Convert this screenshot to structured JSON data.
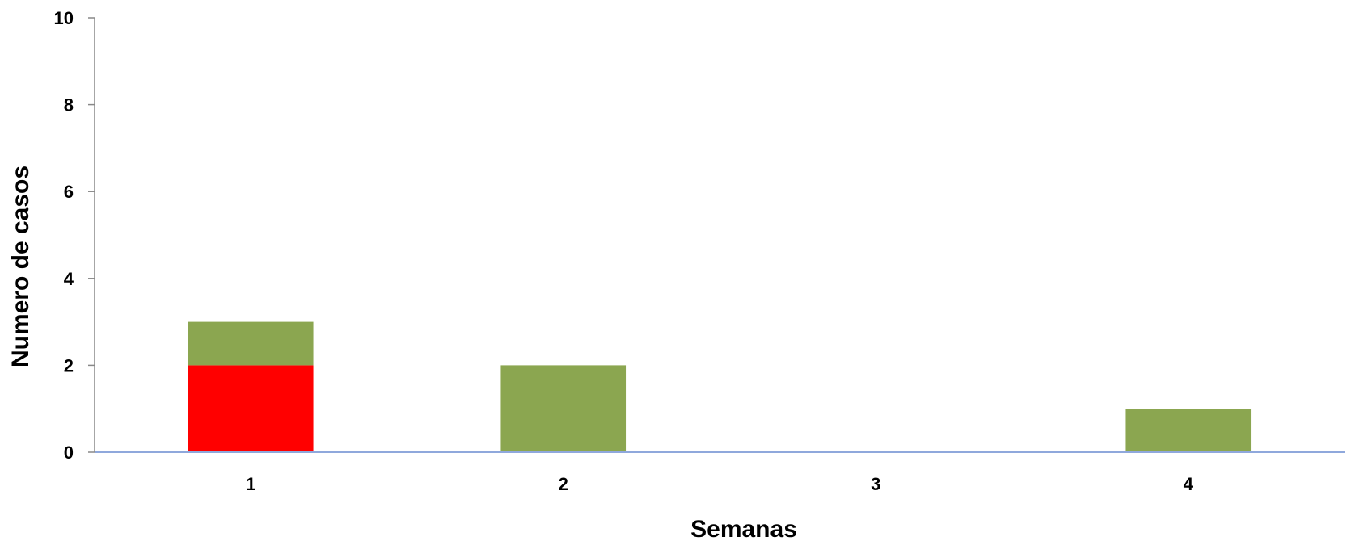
{
  "chart_data": {
    "type": "bar",
    "stacked": true,
    "title": "",
    "xlabel": "Semanas",
    "ylabel": "Numero de casos",
    "categories": [
      "1",
      "2",
      "3",
      "4"
    ],
    "ylim": [
      0,
      10
    ],
    "yticks": [
      0,
      2,
      4,
      6,
      8,
      10
    ],
    "grid": false,
    "legend": "none",
    "series": [
      {
        "color": "#FF0000",
        "values": [
          2,
          0,
          0,
          0
        ]
      },
      {
        "color": "#8BA650",
        "values": [
          1,
          2,
          0,
          1
        ]
      }
    ],
    "axis_color": "#8FA8DC",
    "tick_color": "#888888"
  }
}
